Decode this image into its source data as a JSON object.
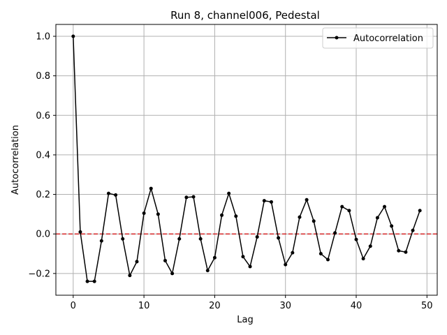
{
  "chart_data": {
    "type": "line",
    "title": "Run 8, channel006, Pedestal",
    "xlabel": "Lag",
    "ylabel": "Autocorrelation",
    "xlim": [
      -2.45,
      51.45
    ],
    "ylim": [
      -0.31,
      1.06
    ],
    "xticks": [
      0,
      10,
      20,
      30,
      40,
      50
    ],
    "xtick_labels": [
      "0",
      "10",
      "20",
      "30",
      "40",
      "50"
    ],
    "yticks": [
      -0.2,
      0.0,
      0.2,
      0.4,
      0.6,
      0.8,
      1.0
    ],
    "ytick_labels": [
      "−0.2",
      "0.0",
      "0.2",
      "0.4",
      "0.6",
      "0.8",
      "1.0"
    ],
    "grid": true,
    "legend_position": "top-right",
    "reference_line": {
      "y": 0.0,
      "color": "#d62728",
      "style": "dashed"
    },
    "series": [
      {
        "name": "Autocorrelation",
        "color": "#000000",
        "marker": "circle",
        "x": [
          0,
          1,
          2,
          3,
          4,
          5,
          6,
          7,
          8,
          9,
          10,
          11,
          12,
          13,
          14,
          15,
          16,
          17,
          18,
          19,
          20,
          21,
          22,
          23,
          24,
          25,
          26,
          27,
          28,
          29,
          30,
          31,
          32,
          33,
          34,
          35,
          36,
          37,
          38,
          39,
          40,
          41,
          42,
          43,
          44,
          45,
          46,
          47,
          48,
          49
        ],
        "values": [
          1.0,
          0.01,
          -0.24,
          -0.24,
          -0.035,
          0.205,
          0.197,
          -0.025,
          -0.21,
          -0.14,
          0.105,
          0.23,
          0.1,
          -0.135,
          -0.2,
          -0.025,
          0.185,
          0.188,
          -0.025,
          -0.185,
          -0.12,
          0.095,
          0.205,
          0.09,
          -0.115,
          -0.165,
          -0.015,
          0.168,
          0.162,
          -0.02,
          -0.155,
          -0.095,
          0.085,
          0.173,
          0.065,
          -0.1,
          -0.13,
          0.005,
          0.138,
          0.118,
          -0.028,
          -0.125,
          -0.062,
          0.082,
          0.138,
          0.04,
          -0.085,
          -0.092,
          0.018,
          0.118
        ]
      }
    ]
  }
}
